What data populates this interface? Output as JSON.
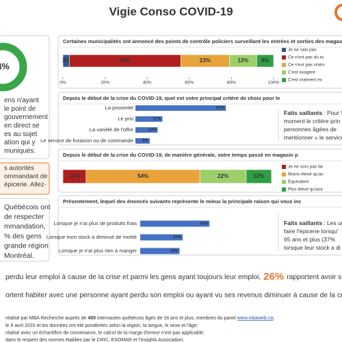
{
  "header": {
    "title": "Vigie Conso COVID-19"
  },
  "left": {
    "donut_label": "4%",
    "block1": [
      "ens n'ayant",
      "le point de",
      "gouvernement",
      "en direct se",
      "es au sujet",
      "ation qui y",
      "muniqués."
    ],
    "callout": [
      "s autorités",
      "ommandant de",
      "épicerie. Allez-"
    ],
    "block2": [
      "Québécois ont",
      "de respecter",
      "mmandation,",
      "% des gens",
      "grande région",
      "Montréal."
    ]
  },
  "chart_data": [
    {
      "type": "stacked-bar",
      "title": "Certaines municipalités ont annoncé des points de contrôle policiers surveillant les entrées et sorties des magas",
      "categories": [
        null
      ],
      "series": [
        {
          "name": "Je ne sais pas",
          "color": "#2f5597",
          "values": [
            3
          ],
          "value_labels": [
            "3%"
          ]
        },
        {
          "name": "Ce n'est pas du to",
          "color": "#b01e1e",
          "values": [
            53
          ],
          "value_labels": [
            "53%"
          ]
        },
        {
          "name": "Ce n'est pas vraim",
          "color": "#e8a33a",
          "values": [
            23
          ],
          "value_labels": [
            "23%"
          ]
        },
        {
          "name": "C'est exagéré",
          "color": "#9ccf6a",
          "values": [
            13
          ],
          "value_labels": [
            "13%"
          ]
        },
        {
          "name": "C'est vraiment ex",
          "color": "#2f9e44",
          "values": [
            8
          ],
          "value_labels": [
            "8%"
          ]
        }
      ],
      "xlim": [
        0,
        100
      ],
      "xticks": [
        {
          "value": 0,
          "label": "0%"
        },
        {
          "value": 20,
          "label": "20%"
        },
        {
          "value": 40,
          "label": "40%"
        },
        {
          "value": 60,
          "label": "60%"
        },
        {
          "value": 80,
          "label": "80%"
        },
        {
          "value": 100,
          "label": "100%"
        }
      ],
      "legend": "right"
    },
    {
      "type": "hbar",
      "title": "Depuis le début de la crise du COVID-19, quel est votre principal critère de choix pour le",
      "categories": [
        "La proximité",
        "Le prix",
        "La variété de l'offre",
        "Le service de livraison ou de commande"
      ],
      "values": [
        57,
        17,
        14,
        9
      ],
      "value_labels": [
        "57%",
        "17%",
        "14%",
        "9%"
      ],
      "color": "#4472c4",
      "xlim": [
        0,
        100
      ],
      "highlights": {
        "label": "Faits saillants",
        "lines": [
          ": Pour S",
          "moment le critère prin",
          "personnes âgées de",
          "mentionner « le service"
        ]
      }
    },
    {
      "type": "stacked-bar",
      "title": "Depuis le début de la crise du COVID-19, de manière générale, votre temps passé en magasin p",
      "categories": [
        null
      ],
      "series": [
        {
          "name": "Je ne sors pas fai",
          "color": "#b01e1e",
          "values": [
            11
          ],
          "value_labels": [
            "11%"
          ]
        },
        {
          "name": "Moins élevé qu'av",
          "color": "#e8a33a",
          "values": [
            54
          ],
          "value_labels": [
            "54%"
          ]
        },
        {
          "name": "Équivalent",
          "color": "#9ccf6a",
          "values": [
            22
          ],
          "value_labels": [
            "22%"
          ]
        },
        {
          "name": "Plus élevé qu'ava",
          "color": "#2f9e44",
          "values": [
            12
          ],
          "value_labels": [
            "12%"
          ]
        }
      ],
      "xlim": [
        0,
        100
      ],
      "legend": "right"
    },
    {
      "type": "hbar",
      "title": "Présentement, lequel des énoncés suivants représente le mieux la principale raison qui vous inc",
      "categories": [
        "Lorsque je n'ai plus de produits frais",
        "Lorsque mon stock a diminué de moitié",
        "Lorsque je n'ai plus rien à manger"
      ],
      "values": [
        44,
        27,
        25
      ],
      "value_labels": [
        "44%",
        "27%",
        "25%"
      ],
      "color": "#4472c4",
      "xlim": [
        0,
        100
      ],
      "highlights": {
        "label": "Faits saillants",
        "lines": [
          ": Les un",
          "faire l'épicerie lorsqu'",
          "65 ans et plus (37%",
          "lorsque leur stock a di"
        ]
      }
    }
  ],
  "bottom": {
    "line1": {
      "before": "perdu leur emploi à cause de la crise et parmi les gens ayant toujours leur emploi,",
      "highlight": "26%",
      "after": "rapportent avoir subi une b"
    },
    "line2": "ortent habiter avec une personne ayant perdu son emploi ou ayant vu ses revenus diminuer à cause de la crise, dont 4"
  },
  "footnotes": {
    "first": {
      "before": "réalisé par MBA Recherche auprès de",
      "bold": "400",
      "middle": "internautes québécois âgés de 18 ans et plus, membres du panel",
      "link": "www.mbaweb.ca",
      "after": ";"
    },
    "lines": [
      "le 8 avril 2020 et les données ont été pondérées selon la région, la langue, le sexe et l'âge;",
      "réalisé avec un échantillon de convenance, le calcul de la marge d'erreur n'est pas applicable;",
      "dans le respect des normes établies par le CRIC, ESOMAR et l'Insights Association;"
    ]
  }
}
